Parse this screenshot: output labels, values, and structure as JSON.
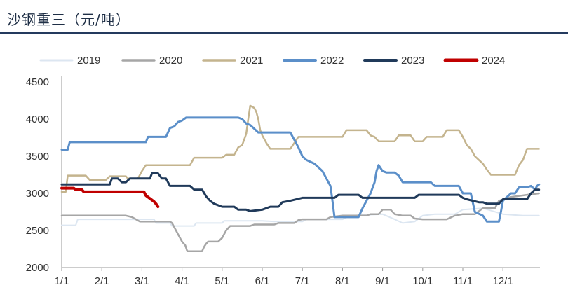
{
  "chart_data": {
    "type": "line",
    "title": "沙钢重三（元/吨）",
    "xlabel": "",
    "ylabel": "",
    "x_tick_labels": [
      "1/1",
      "2/1",
      "3/1",
      "4/1",
      "5/1",
      "6/1",
      "7/1",
      "8/1",
      "9/1",
      "10/1",
      "11/1",
      "12/1"
    ],
    "ylim": [
      2000,
      4500
    ],
    "y_ticks": [
      2000,
      2500,
      3000,
      3500,
      4000,
      4500
    ],
    "grid": false,
    "legend_position": "top",
    "series": [
      {
        "name": "2019",
        "color": "#dce6f1",
        "width": 2,
        "points": [
          [
            0,
            2570
          ],
          [
            0.35,
            2570
          ],
          [
            0.4,
            2650
          ],
          [
            2.3,
            2650
          ],
          [
            2.35,
            2600
          ],
          [
            2.7,
            2600
          ],
          [
            2.75,
            2560
          ],
          [
            3.3,
            2560
          ],
          [
            3.35,
            2600
          ],
          [
            4.0,
            2600
          ],
          [
            4.05,
            2630
          ],
          [
            5.0,
            2630
          ],
          [
            5.3,
            2620
          ],
          [
            6.0,
            2620
          ],
          [
            6.1,
            2650
          ],
          [
            7.0,
            2650
          ],
          [
            7.2,
            2700
          ],
          [
            8.0,
            2720
          ],
          [
            8.3,
            2650
          ],
          [
            8.5,
            2600
          ],
          [
            8.8,
            2620
          ],
          [
            9.0,
            2700
          ],
          [
            9.3,
            2720
          ],
          [
            9.8,
            2720
          ],
          [
            10.0,
            2780
          ],
          [
            10.5,
            2800
          ],
          [
            11.0,
            2720
          ],
          [
            11.5,
            2700
          ],
          [
            11.9,
            2700
          ]
        ]
      },
      {
        "name": "2020",
        "color": "#a6a6a6",
        "width": 2.5,
        "points": [
          [
            0,
            2700
          ],
          [
            1.6,
            2700
          ],
          [
            1.75,
            2680
          ],
          [
            1.95,
            2620
          ],
          [
            2.7,
            2620
          ],
          [
            2.75,
            2600
          ],
          [
            2.85,
            2500
          ],
          [
            2.95,
            2400
          ],
          [
            3.0,
            2350
          ],
          [
            3.08,
            2300
          ],
          [
            3.13,
            2220
          ],
          [
            3.5,
            2220
          ],
          [
            3.55,
            2280
          ],
          [
            3.6,
            2320
          ],
          [
            3.65,
            2350
          ],
          [
            3.9,
            2350
          ],
          [
            4.0,
            2400
          ],
          [
            4.1,
            2500
          ],
          [
            4.2,
            2560
          ],
          [
            4.7,
            2560
          ],
          [
            4.8,
            2580
          ],
          [
            5.3,
            2580
          ],
          [
            5.4,
            2600
          ],
          [
            5.8,
            2600
          ],
          [
            5.9,
            2640
          ],
          [
            6.0,
            2650
          ],
          [
            6.6,
            2650
          ],
          [
            6.7,
            2680
          ],
          [
            7.0,
            2700
          ],
          [
            7.6,
            2700
          ],
          [
            7.7,
            2720
          ],
          [
            7.9,
            2720
          ],
          [
            8.0,
            2780
          ],
          [
            8.2,
            2780
          ],
          [
            8.3,
            2720
          ],
          [
            8.5,
            2700
          ],
          [
            8.7,
            2700
          ],
          [
            8.8,
            2660
          ],
          [
            9.0,
            2650
          ],
          [
            9.6,
            2650
          ],
          [
            9.8,
            2700
          ],
          [
            10.0,
            2720
          ],
          [
            10.3,
            2720
          ],
          [
            10.5,
            2800
          ],
          [
            10.8,
            2800
          ],
          [
            10.9,
            2900
          ],
          [
            11.2,
            2950
          ],
          [
            11.6,
            2980
          ],
          [
            11.9,
            3000
          ]
        ]
      },
      {
        "name": "2021",
        "color": "#c4b48e",
        "width": 2.5,
        "points": [
          [
            0,
            3020
          ],
          [
            0.1,
            3020
          ],
          [
            0.15,
            3240
          ],
          [
            0.6,
            3240
          ],
          [
            0.7,
            3180
          ],
          [
            1.1,
            3180
          ],
          [
            1.2,
            3230
          ],
          [
            1.6,
            3230
          ],
          [
            1.65,
            3200
          ],
          [
            1.9,
            3200
          ],
          [
            2.0,
            3300
          ],
          [
            2.1,
            3380
          ],
          [
            2.6,
            3380
          ],
          [
            2.7,
            3380
          ],
          [
            3.2,
            3380
          ],
          [
            3.3,
            3480
          ],
          [
            4.0,
            3480
          ],
          [
            4.1,
            3520
          ],
          [
            4.3,
            3520
          ],
          [
            4.4,
            3620
          ],
          [
            4.5,
            3650
          ],
          [
            4.6,
            3800
          ],
          [
            4.65,
            4000
          ],
          [
            4.7,
            4180
          ],
          [
            4.8,
            4150
          ],
          [
            4.85,
            4100
          ],
          [
            4.9,
            4000
          ],
          [
            4.95,
            3850
          ],
          [
            5.0,
            3780
          ],
          [
            5.1,
            3680
          ],
          [
            5.2,
            3600
          ],
          [
            5.7,
            3600
          ],
          [
            5.8,
            3680
          ],
          [
            5.9,
            3760
          ],
          [
            6.2,
            3760
          ],
          [
            6.5,
            3760
          ],
          [
            7.0,
            3760
          ],
          [
            7.1,
            3850
          ],
          [
            7.6,
            3850
          ],
          [
            7.7,
            3780
          ],
          [
            7.8,
            3760
          ],
          [
            7.9,
            3700
          ],
          [
            8.3,
            3700
          ],
          [
            8.4,
            3780
          ],
          [
            8.7,
            3780
          ],
          [
            8.8,
            3700
          ],
          [
            9.0,
            3700
          ],
          [
            9.1,
            3760
          ],
          [
            9.5,
            3760
          ],
          [
            9.6,
            3850
          ],
          [
            9.9,
            3850
          ],
          [
            10.0,
            3760
          ],
          [
            10.1,
            3650
          ],
          [
            10.2,
            3600
          ],
          [
            10.3,
            3500
          ],
          [
            10.4,
            3450
          ],
          [
            10.5,
            3400
          ],
          [
            10.6,
            3320
          ],
          [
            10.7,
            3250
          ],
          [
            11.3,
            3250
          ],
          [
            11.4,
            3380
          ],
          [
            11.5,
            3450
          ],
          [
            11.6,
            3600
          ],
          [
            11.9,
            3600
          ]
        ]
      },
      {
        "name": "2022",
        "color": "#5b8fc9",
        "width": 3,
        "points": [
          [
            0,
            3590
          ],
          [
            0.15,
            3590
          ],
          [
            0.2,
            3690
          ],
          [
            2.1,
            3690
          ],
          [
            2.15,
            3760
          ],
          [
            2.6,
            3760
          ],
          [
            2.7,
            3880
          ],
          [
            2.8,
            3900
          ],
          [
            2.9,
            3960
          ],
          [
            3.0,
            3980
          ],
          [
            3.1,
            4020
          ],
          [
            3.3,
            4020
          ],
          [
            4.4,
            4020
          ],
          [
            4.5,
            4000
          ],
          [
            4.6,
            3940
          ],
          [
            4.7,
            3920
          ],
          [
            4.8,
            3870
          ],
          [
            4.9,
            3820
          ],
          [
            5.7,
            3820
          ],
          [
            5.8,
            3720
          ],
          [
            5.9,
            3620
          ],
          [
            6.0,
            3500
          ],
          [
            6.1,
            3450
          ],
          [
            6.3,
            3400
          ],
          [
            6.4,
            3350
          ],
          [
            6.5,
            3300
          ],
          [
            6.6,
            3200
          ],
          [
            6.7,
            3100
          ],
          [
            6.75,
            2900
          ],
          [
            6.8,
            2680
          ],
          [
            7.4,
            2680
          ],
          [
            7.5,
            2800
          ],
          [
            7.6,
            2900
          ],
          [
            7.7,
            3000
          ],
          [
            7.8,
            3150
          ],
          [
            7.85,
            3300
          ],
          [
            7.9,
            3380
          ],
          [
            8.0,
            3300
          ],
          [
            8.1,
            3280
          ],
          [
            8.3,
            3280
          ],
          [
            8.4,
            3240
          ],
          [
            8.5,
            3150
          ],
          [
            9.0,
            3150
          ],
          [
            9.2,
            3150
          ],
          [
            9.3,
            3100
          ],
          [
            9.9,
            3100
          ],
          [
            10.0,
            3000
          ],
          [
            10.2,
            3000
          ],
          [
            10.3,
            2750
          ],
          [
            10.5,
            2700
          ],
          [
            10.6,
            2620
          ],
          [
            10.9,
            2620
          ],
          [
            10.95,
            2750
          ],
          [
            11.0,
            2900
          ],
          [
            11.2,
            3000
          ],
          [
            11.3,
            3000
          ],
          [
            11.4,
            3080
          ],
          [
            11.6,
            3080
          ],
          [
            11.7,
            3100
          ],
          [
            11.8,
            3050
          ],
          [
            11.85,
            3100
          ],
          [
            11.9,
            3120
          ]
        ]
      },
      {
        "name": "2023",
        "color": "#203a5a",
        "width": 3,
        "points": [
          [
            0,
            3120
          ],
          [
            1.2,
            3120
          ],
          [
            1.25,
            3200
          ],
          [
            1.4,
            3200
          ],
          [
            1.5,
            3150
          ],
          [
            1.6,
            3150
          ],
          [
            1.7,
            3200
          ],
          [
            2.2,
            3200
          ],
          [
            2.25,
            3270
          ],
          [
            2.4,
            3270
          ],
          [
            2.5,
            3200
          ],
          [
            2.6,
            3200
          ],
          [
            2.7,
            3100
          ],
          [
            3.2,
            3100
          ],
          [
            3.3,
            3050
          ],
          [
            3.5,
            3050
          ],
          [
            3.6,
            2960
          ],
          [
            3.7,
            2900
          ],
          [
            3.8,
            2860
          ],
          [
            4.0,
            2820
          ],
          [
            4.3,
            2820
          ],
          [
            4.4,
            2780
          ],
          [
            4.6,
            2780
          ],
          [
            4.7,
            2760
          ],
          [
            5.0,
            2780
          ],
          [
            5.2,
            2820
          ],
          [
            5.4,
            2820
          ],
          [
            5.5,
            2880
          ],
          [
            5.7,
            2900
          ],
          [
            6.0,
            2940
          ],
          [
            6.8,
            2940
          ],
          [
            6.9,
            2980
          ],
          [
            7.4,
            2980
          ],
          [
            7.5,
            2940
          ],
          [
            8.8,
            2940
          ],
          [
            8.9,
            2980
          ],
          [
            9.9,
            2980
          ],
          [
            10.0,
            2940
          ],
          [
            10.1,
            2920
          ],
          [
            10.4,
            2880
          ],
          [
            10.5,
            2880
          ],
          [
            10.6,
            2860
          ],
          [
            10.9,
            2860
          ],
          [
            11.0,
            2920
          ],
          [
            11.6,
            2920
          ],
          [
            11.7,
            3000
          ],
          [
            11.8,
            3050
          ],
          [
            11.9,
            3050
          ]
        ]
      },
      {
        "name": "2024",
        "color": "#c00000",
        "width": 4,
        "points": [
          [
            0,
            3070
          ],
          [
            0.3,
            3070
          ],
          [
            0.35,
            3050
          ],
          [
            0.5,
            3050
          ],
          [
            0.55,
            3020
          ],
          [
            2.05,
            3020
          ],
          [
            2.1,
            2970
          ],
          [
            2.2,
            2930
          ],
          [
            2.3,
            2890
          ],
          [
            2.35,
            2860
          ],
          [
            2.4,
            2820
          ]
        ]
      }
    ]
  }
}
